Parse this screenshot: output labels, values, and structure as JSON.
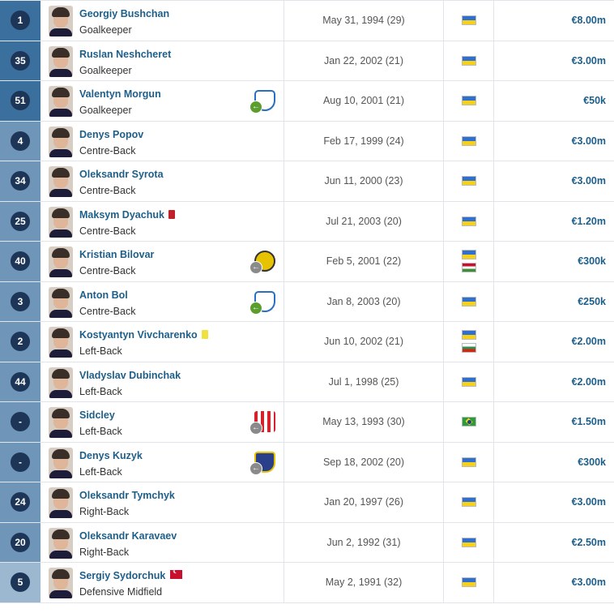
{
  "colors": {
    "number_badge": "#1d3557",
    "name_link": "#1d5f8a",
    "band_dark": "#3a6f9e",
    "band_mid": "#6f96b8",
    "band_light": "#9bb8d0"
  },
  "players": [
    {
      "number": "1",
      "name": "Georgiy Bushchan",
      "position": "Goalkeeper",
      "dob": "May 31, 1994 (29)",
      "flags": [
        "ua"
      ],
      "value": "€8.00m",
      "band": "#3a6f9e"
    },
    {
      "number": "35",
      "name": "Ruslan Neshcheret",
      "position": "Goalkeeper",
      "dob": "Jan 22, 2002 (21)",
      "flags": [
        "ua"
      ],
      "value": "€3.00m",
      "band": "#3a6f9e"
    },
    {
      "number": "51",
      "name": "Valentyn Morgun",
      "position": "Goalkeeper",
      "dob": "Aug 10, 2001 (21)",
      "flags": [
        "ua"
      ],
      "value": "€50k",
      "band": "#3a6f9e",
      "club": {
        "icon": "dynamo-kyiv-logo",
        "arrow": "green"
      }
    },
    {
      "number": "4",
      "name": "Denys Popov",
      "position": "Centre-Back",
      "dob": "Feb 17, 1999 (24)",
      "flags": [
        "ua"
      ],
      "value": "€3.00m",
      "band": "#6f96b8"
    },
    {
      "number": "34",
      "name": "Oleksandr Syrota",
      "position": "Centre-Back",
      "dob": "Jun 11, 2000 (23)",
      "flags": [
        "ua"
      ],
      "value": "€3.00m",
      "band": "#6f96b8"
    },
    {
      "number": "25",
      "name": "Maksym Dyachuk",
      "position": "Centre-Back",
      "dob": "Jul 21, 2003 (20)",
      "flags": [
        "ua"
      ],
      "value": "€1.20m",
      "band": "#6f96b8",
      "card": "red"
    },
    {
      "number": "40",
      "name": "Kristian Bilovar",
      "position": "Centre-Back",
      "dob": "Feb 5, 2001 (22)",
      "flags": [
        "ua",
        "hu"
      ],
      "value": "€300k",
      "band": "#6f96b8",
      "club": {
        "icon": "club-crest-yellow",
        "arrow": "grey"
      }
    },
    {
      "number": "3",
      "name": "Anton Bol",
      "position": "Centre-Back",
      "dob": "Jan 8, 2003 (20)",
      "flags": [
        "ua"
      ],
      "value": "€250k",
      "band": "#6f96b8",
      "club": {
        "icon": "dynamo-kyiv-logo",
        "arrow": "green"
      }
    },
    {
      "number": "2",
      "name": "Kostyantyn Vivcharenko",
      "position": "Left-Back",
      "dob": "Jun 10, 2002 (21)",
      "flags": [
        "ua",
        "bg"
      ],
      "value": "€2.00m",
      "band": "#6f96b8",
      "card": "yellow"
    },
    {
      "number": "44",
      "name": "Vladyslav Dubinchak",
      "position": "Left-Back",
      "dob": "Jul 1, 1998 (25)",
      "flags": [
        "ua"
      ],
      "value": "€2.00m",
      "band": "#6f96b8"
    },
    {
      "number": "-",
      "name": "Sidcley",
      "position": "Left-Back",
      "dob": "May 13, 1993 (30)",
      "flags": [
        "br"
      ],
      "value": "€1.50m",
      "band": "#6f96b8",
      "club": {
        "icon": "club-crest-red",
        "arrow": "grey"
      }
    },
    {
      "number": "-",
      "name": "Denys Kuzyk",
      "position": "Left-Back",
      "dob": "Sep 18, 2002 (20)",
      "flags": [
        "ua"
      ],
      "value": "€300k",
      "band": "#6f96b8",
      "club": {
        "icon": "club-crest-blue",
        "arrow": "grey"
      }
    },
    {
      "number": "24",
      "name": "Oleksandr Tymchyk",
      "position": "Right-Back",
      "dob": "Jan 20, 1997 (26)",
      "flags": [
        "ua"
      ],
      "value": "€3.00m",
      "band": "#6f96b8"
    },
    {
      "number": "20",
      "name": "Oleksandr Karavaev",
      "position": "Right-Back",
      "dob": "Jun 2, 1992 (31)",
      "flags": [
        "ua"
      ],
      "value": "€2.50m",
      "band": "#6f96b8"
    },
    {
      "number": "5",
      "name": "Sergiy Sydorchuk",
      "position": "Defensive Midfield",
      "dob": "May 2, 1991 (32)",
      "flags": [
        "ua"
      ],
      "value": "€3.00m",
      "band": "#9bb8d0",
      "flag_icon": "turkey-flag-icon"
    }
  ]
}
